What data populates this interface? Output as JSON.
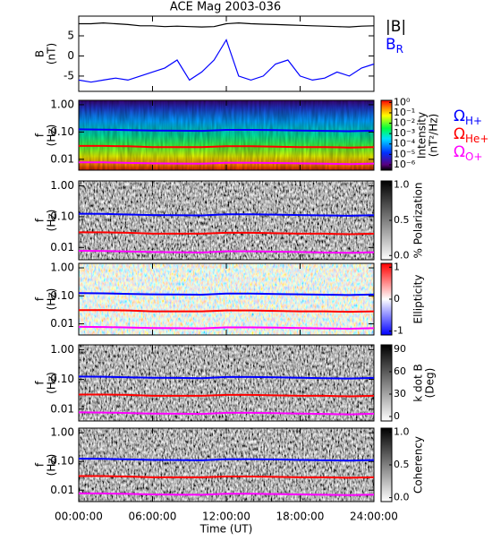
{
  "title": "ACE Mag 2003-036",
  "xlabel": "Time (UT)",
  "xlim": [
    0,
    24
  ],
  "xticks": [
    {
      "value": 0,
      "label": "00:00:00"
    },
    {
      "value": 6,
      "label": "06:00:00"
    },
    {
      "value": 12,
      "label": "12:00:00"
    },
    {
      "value": 18,
      "label": "18:00:00"
    },
    {
      "value": 24,
      "label": "24:00:00"
    }
  ],
  "chart_data": [
    {
      "type": "line",
      "ylabel": [
        "B",
        "(nT)"
      ],
      "ylim": [
        -8.8,
        9.9
      ],
      "yticks": [
        5,
        0,
        -5
      ],
      "x": [
        0,
        1,
        2,
        3,
        4,
        5,
        6,
        7,
        8,
        9,
        10,
        11,
        12,
        13,
        14,
        15,
        16,
        17,
        18,
        19,
        20,
        21,
        22,
        23,
        24
      ],
      "series": [
        {
          "name": "|B|",
          "color": "#000000",
          "values": [
            8,
            8,
            8.2,
            8,
            7.8,
            7.5,
            7.5,
            7.3,
            7.4,
            7.3,
            7.2,
            7.3,
            8,
            8.2,
            8,
            7.9,
            7.8,
            7.7,
            7.6,
            7.5,
            7.4,
            7.3,
            7.2,
            7.4,
            7.5
          ]
        },
        {
          "name": "B",
          "sub": "R",
          "color": "#0000ff",
          "values": [
            -6,
            -6.5,
            -6,
            -5.5,
            -6,
            -5,
            -4,
            -3,
            -1,
            -6,
            -4,
            -1,
            4,
            -5,
            -6,
            -5,
            -2,
            -1,
            -5,
            -6,
            -5.5,
            -4,
            -5,
            -3,
            -2
          ]
        }
      ]
    },
    {
      "type": "spectrogram",
      "colormap": "rainbow",
      "ylabel": [
        "f",
        "(Hz)"
      ],
      "log": true,
      "ylim": [
        0.004,
        1.45
      ],
      "yticks": [
        {
          "value": 1,
          "label": "1.00"
        },
        {
          "value": 0.1,
          "label": "0.10"
        },
        0.01
      ],
      "colorbar_label": [
        "Intensity",
        "(nT²/Hz)"
      ],
      "clog": true,
      "clim": [
        3e-07,
        1.6
      ],
      "cticks": [
        {
          "value": 1,
          "label": "10⁰"
        },
        {
          "value": 0.1,
          "label": "10⁻¹"
        },
        {
          "value": 0.01,
          "label": "10⁻²"
        },
        {
          "value": 0.001,
          "label": "10⁻³"
        },
        {
          "value": 0.0001,
          "label": "10⁻⁴"
        },
        {
          "value": 1e-05,
          "label": "10⁻⁵"
        },
        {
          "value": 1e-06,
          "label": "10⁻⁶"
        }
      ],
      "legend": true,
      "x": [
        0,
        2,
        4,
        6,
        8,
        10,
        12,
        14,
        16,
        18,
        20,
        22,
        24
      ],
      "series": [
        {
          "name": "Ω",
          "sub": "H+",
          "color": "#0000ff",
          "values": [
            0.125,
            0.123,
            0.118,
            0.113,
            0.112,
            0.11,
            0.12,
            0.12,
            0.117,
            0.113,
            0.11,
            0.107,
            0.112
          ]
        },
        {
          "name": "Ω",
          "sub": "He+",
          "color": "#ff0000",
          "values": [
            0.031,
            0.031,
            0.03,
            0.028,
            0.028,
            0.028,
            0.03,
            0.03,
            0.029,
            0.028,
            0.028,
            0.027,
            0.028
          ]
        },
        {
          "name": "Ω",
          "sub": "O+",
          "color": "#ff00ff",
          "values": [
            0.0078,
            0.0077,
            0.0074,
            0.0071,
            0.007,
            0.0069,
            0.0075,
            0.0075,
            0.0073,
            0.0071,
            0.0069,
            0.0067,
            0.007
          ]
        }
      ]
    },
    {
      "type": "spectrogram",
      "colormap": "gray",
      "ylabel": [
        "f",
        "(Hz)"
      ],
      "log": true,
      "ylim": [
        0.004,
        1.45
      ],
      "yticks": [
        {
          "value": 1,
          "label": "1.00"
        },
        {
          "value": 0.1,
          "label": "0.10"
        },
        0.01
      ],
      "colorbar_label": [
        "% Polarization"
      ],
      "clim": [
        -0.06,
        1.06
      ],
      "cticks": [
        {
          "value": 1,
          "label": "1.0"
        },
        {
          "value": 0.5,
          "label": "0.5"
        },
        {
          "value": 0,
          "label": "0.0"
        }
      ],
      "x": [
        0,
        2,
        4,
        6,
        8,
        10,
        12,
        14,
        16,
        18,
        20,
        22,
        24
      ],
      "series": [
        {
          "color": "#0000ff",
          "values": [
            0.125,
            0.123,
            0.118,
            0.113,
            0.112,
            0.11,
            0.12,
            0.12,
            0.117,
            0.113,
            0.11,
            0.107,
            0.112
          ]
        },
        {
          "color": "#ff0000",
          "values": [
            0.031,
            0.031,
            0.03,
            0.028,
            0.028,
            0.028,
            0.03,
            0.03,
            0.029,
            0.028,
            0.028,
            0.027,
            0.028
          ]
        },
        {
          "color": "#ff00ff",
          "values": [
            0.0078,
            0.0077,
            0.0074,
            0.0071,
            0.007,
            0.0069,
            0.0075,
            0.0075,
            0.0073,
            0.0071,
            0.0069,
            0.0067,
            0.007
          ]
        }
      ]
    },
    {
      "type": "spectrogram",
      "colormap": "bwr",
      "ylabel": [
        "f",
        "(Hz)"
      ],
      "log": true,
      "ylim": [
        0.004,
        1.45
      ],
      "yticks": [
        {
          "value": 1,
          "label": "1.00"
        },
        {
          "value": 0.1,
          "label": "0.10"
        },
        0.01
      ],
      "colorbar_label": [
        "Ellipticity"
      ],
      "clim": [
        -1.12,
        1.12
      ],
      "cticks": [
        1,
        0,
        -1
      ],
      "x": [
        0,
        2,
        4,
        6,
        8,
        10,
        12,
        14,
        16,
        18,
        20,
        22,
        24
      ],
      "series": [
        {
          "color": "#0000ff",
          "values": [
            0.125,
            0.123,
            0.118,
            0.113,
            0.112,
            0.11,
            0.12,
            0.12,
            0.117,
            0.113,
            0.11,
            0.107,
            0.112
          ]
        },
        {
          "color": "#ff0000",
          "values": [
            0.031,
            0.031,
            0.03,
            0.028,
            0.028,
            0.028,
            0.03,
            0.03,
            0.029,
            0.028,
            0.028,
            0.027,
            0.028
          ]
        },
        {
          "color": "#ff00ff",
          "values": [
            0.0078,
            0.0077,
            0.0074,
            0.0071,
            0.007,
            0.0069,
            0.0075,
            0.0075,
            0.0073,
            0.0071,
            0.0069,
            0.0067,
            0.007
          ]
        }
      ]
    },
    {
      "type": "spectrogram",
      "colormap": "gray",
      "ylabel": [
        "f",
        "(Hz)"
      ],
      "log": true,
      "ylim": [
        0.004,
        1.45
      ],
      "yticks": [
        {
          "value": 1,
          "label": "1.00"
        },
        {
          "value": 0.1,
          "label": "0.10"
        },
        0.01
      ],
      "colorbar_label": [
        "k dot B",
        "(Deg)"
      ],
      "clim": [
        -6,
        96
      ],
      "cticks": [
        90,
        60,
        30,
        0
      ],
      "x": [
        0,
        2,
        4,
        6,
        8,
        10,
        12,
        14,
        16,
        18,
        20,
        22,
        24
      ],
      "series": [
        {
          "color": "#0000ff",
          "values": [
            0.125,
            0.123,
            0.118,
            0.113,
            0.112,
            0.11,
            0.12,
            0.12,
            0.117,
            0.113,
            0.11,
            0.107,
            0.112
          ]
        },
        {
          "color": "#ff0000",
          "values": [
            0.031,
            0.031,
            0.03,
            0.028,
            0.028,
            0.028,
            0.03,
            0.03,
            0.029,
            0.028,
            0.028,
            0.027,
            0.028
          ]
        },
        {
          "color": "#ff00ff",
          "values": [
            0.0078,
            0.0077,
            0.0074,
            0.0071,
            0.007,
            0.0069,
            0.0075,
            0.0075,
            0.0073,
            0.0071,
            0.0069,
            0.0067,
            0.007
          ]
        }
      ]
    },
    {
      "type": "spectrogram",
      "colormap": "gray",
      "ylabel": [
        "f",
        "(Hz)"
      ],
      "log": true,
      "ylim": [
        0.004,
        1.45
      ],
      "yticks": [
        {
          "value": 1,
          "label": "1.00"
        },
        {
          "value": 0.1,
          "label": "0.10"
        },
        0.01
      ],
      "colorbar_label": [
        "Coherency"
      ],
      "clim": [
        -0.06,
        1.06
      ],
      "cticks": [
        {
          "value": 1,
          "label": "1.0"
        },
        {
          "value": 0.5,
          "label": "0.5"
        },
        {
          "value": 0,
          "label": "0.0"
        }
      ],
      "x": [
        0,
        2,
        4,
        6,
        8,
        10,
        12,
        14,
        16,
        18,
        20,
        22,
        24
      ],
      "series": [
        {
          "color": "#0000ff",
          "values": [
            0.125,
            0.123,
            0.118,
            0.113,
            0.112,
            0.11,
            0.12,
            0.12,
            0.117,
            0.113,
            0.11,
            0.107,
            0.112
          ]
        },
        {
          "color": "#ff0000",
          "values": [
            0.031,
            0.031,
            0.03,
            0.028,
            0.028,
            0.028,
            0.03,
            0.03,
            0.029,
            0.028,
            0.028,
            0.027,
            0.028
          ]
        },
        {
          "color": "#ff00ff",
          "values": [
            0.0078,
            0.0077,
            0.0074,
            0.0071,
            0.007,
            0.0069,
            0.0075,
            0.0075,
            0.0073,
            0.0071,
            0.0069,
            0.0067,
            0.007
          ]
        }
      ]
    }
  ]
}
